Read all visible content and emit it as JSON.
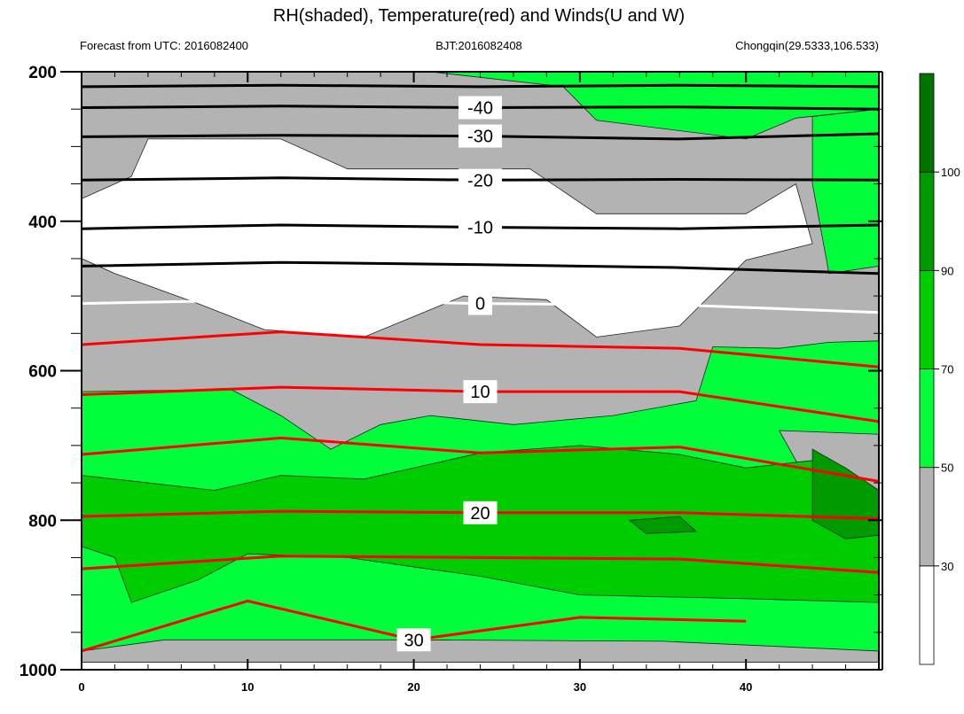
{
  "chart_data": {
    "type": "heatmap",
    "title": "RH(shaded), Temperature(red) and Winds(U and W)",
    "subtitle_left": "Forecast from UTC: 2016082400",
    "subtitle_center": "BJT:2016082408",
    "subtitle_right": "Chongqin(29.5333,106.533)",
    "xlim": [
      0,
      48
    ],
    "ylim": [
      1000,
      200
    ],
    "x_ticks": [
      0,
      10,
      20,
      30,
      40
    ],
    "y_ticks": [
      200,
      400,
      600,
      800,
      1000
    ],
    "x_tick_labels": [
      "0",
      "10",
      "20",
      "30",
      "40"
    ],
    "y_tick_labels": [
      "200",
      "400",
      "600",
      "800",
      "1000"
    ],
    "legend": {
      "position": "right",
      "levels": [
        "30",
        "50",
        "70",
        "90",
        "100"
      ],
      "colors": [
        "#ffffff",
        "#b3b3b3",
        "#00ff3a",
        "#00cd00",
        "#009b00",
        "#007300"
      ]
    },
    "rh_regions": [
      {
        "class": "gray",
        "color": "#b3b3b3",
        "points": [
          [
            0,
            200
          ],
          [
            48,
            200
          ],
          [
            48,
            990
          ],
          [
            0,
            990
          ]
        ]
      },
      {
        "class": "white",
        "color": "#ffffff",
        "points": [
          [
            0,
            990
          ],
          [
            48,
            990
          ],
          [
            48,
            1000
          ],
          [
            0,
            1000
          ]
        ]
      },
      {
        "class": "white",
        "color": "#ffffff",
        "points": [
          [
            4,
            290
          ],
          [
            12,
            290
          ],
          [
            16,
            330
          ],
          [
            27,
            330
          ],
          [
            31,
            390
          ],
          [
            40,
            390
          ],
          [
            43,
            350
          ],
          [
            44,
            430
          ],
          [
            40,
            452
          ],
          [
            36,
            540
          ],
          [
            31,
            555
          ],
          [
            28,
            505
          ],
          [
            23,
            500
          ],
          [
            17,
            555
          ],
          [
            11,
            545
          ],
          [
            7,
            510
          ],
          [
            2,
            470
          ],
          [
            0,
            450
          ],
          [
            0,
            370
          ],
          [
            3,
            340
          ]
        ]
      },
      {
        "class": "green",
        "color": "#00ff3a",
        "points": [
          [
            21,
            200
          ],
          [
            29,
            220
          ],
          [
            31,
            265
          ],
          [
            40,
            290
          ],
          [
            43,
            262
          ],
          [
            48,
            250
          ],
          [
            48,
            200
          ]
        ]
      },
      {
        "class": "green",
        "color": "#00ff3a",
        "points": [
          [
            44,
            260
          ],
          [
            48,
            250
          ],
          [
            48,
            460
          ],
          [
            45,
            470
          ],
          [
            44,
            350
          ]
        ]
      },
      {
        "class": "green",
        "color": "#00ff3a",
        "points": [
          [
            0,
            628
          ],
          [
            9,
            625
          ],
          [
            12,
            660
          ],
          [
            15,
            705
          ],
          [
            18,
            672
          ],
          [
            21,
            660
          ],
          [
            26,
            672
          ],
          [
            32,
            660
          ],
          [
            37,
            640
          ],
          [
            38,
            568
          ],
          [
            42,
            570
          ],
          [
            45,
            562
          ],
          [
            48,
            560
          ],
          [
            48,
            975
          ],
          [
            35,
            962
          ],
          [
            20,
            960
          ],
          [
            5,
            960
          ],
          [
            0,
            975
          ]
        ]
      },
      {
        "class": "gray",
        "color": "#b3b3b3",
        "points": [
          [
            42,
            680
          ],
          [
            48,
            685
          ],
          [
            48,
            760
          ],
          [
            44,
            760
          ]
        ]
      },
      {
        "class": "light-green",
        "color": "#00cd00",
        "points": [
          [
            0,
            740
          ],
          [
            8,
            760
          ],
          [
            12,
            740
          ],
          [
            17,
            745
          ],
          [
            24,
            710
          ],
          [
            30,
            700
          ],
          [
            36,
            712
          ],
          [
            40,
            730
          ],
          [
            44,
            720
          ],
          [
            48,
            760
          ],
          [
            48,
            910
          ],
          [
            40,
            905
          ],
          [
            30,
            900
          ],
          [
            24,
            875
          ],
          [
            16,
            850
          ],
          [
            10,
            845
          ],
          [
            7,
            880
          ],
          [
            3,
            910
          ],
          [
            2,
            850
          ],
          [
            0,
            835
          ]
        ]
      },
      {
        "class": "dark-green",
        "color": "#009b00",
        "points": [
          [
            44,
            705
          ],
          [
            46,
            730
          ],
          [
            48,
            760
          ],
          [
            48,
            820
          ],
          [
            46,
            825
          ],
          [
            44,
            800
          ]
        ]
      },
      {
        "class": "dark-green",
        "color": "#009b00",
        "points": [
          [
            33,
            800
          ],
          [
            36,
            795
          ],
          [
            37,
            815
          ],
          [
            34,
            818
          ]
        ]
      }
    ],
    "series": [
      {
        "name": "-40",
        "color": "#000000",
        "points": [
          [
            0,
            248
          ],
          [
            12,
            246
          ],
          [
            24,
            248
          ],
          [
            36,
            247
          ],
          [
            48,
            250
          ]
        ]
      },
      {
        "name": "-30",
        "color": "#000000",
        "points": [
          [
            0,
            287
          ],
          [
            12,
            285
          ],
          [
            24,
            286
          ],
          [
            36,
            290
          ],
          [
            48,
            283
          ]
        ]
      },
      {
        "name": "-20",
        "color": "#000000",
        "points": [
          [
            0,
            345
          ],
          [
            12,
            342
          ],
          [
            24,
            345
          ],
          [
            36,
            344
          ],
          [
            48,
            345
          ]
        ]
      },
      {
        "name": "-10",
        "color": "#000000",
        "points": [
          [
            0,
            410
          ],
          [
            12,
            405
          ],
          [
            24,
            408
          ],
          [
            36,
            410
          ],
          [
            48,
            405
          ]
        ]
      },
      {
        "name": "0",
        "color": "#ffffff",
        "points": [
          [
            0,
            510
          ],
          [
            12,
            505
          ],
          [
            24,
            510
          ],
          [
            36,
            512
          ],
          [
            48,
            522
          ]
        ]
      },
      {
        "name": "10",
        "color": "#ff0000",
        "points": [
          [
            0,
            632
          ],
          [
            12,
            622
          ],
          [
            24,
            628
          ],
          [
            36,
            628
          ],
          [
            48,
            668
          ]
        ]
      },
      {
        "name": "20",
        "color": "#ff0000",
        "points": [
          [
            0,
            795
          ],
          [
            12,
            788
          ],
          [
            24,
            790
          ],
          [
            36,
            790
          ],
          [
            48,
            798
          ]
        ]
      },
      {
        "name": "30",
        "color": "#ff0000",
        "points": [
          [
            0,
            975
          ],
          [
            10,
            908
          ],
          [
            20,
            960
          ],
          [
            30,
            930
          ],
          [
            40,
            935
          ]
        ]
      },
      {
        "name": "",
        "color": "#000000",
        "points": [
          [
            0,
            220
          ],
          [
            12,
            218
          ],
          [
            24,
            220
          ],
          [
            36,
            218
          ],
          [
            48,
            220
          ]
        ]
      },
      {
        "name": "",
        "color": "#000000",
        "points": [
          [
            0,
            460
          ],
          [
            12,
            455
          ],
          [
            24,
            458
          ],
          [
            36,
            462
          ],
          [
            48,
            470
          ]
        ]
      },
      {
        "name": "",
        "color": "#ff0000",
        "points": [
          [
            0,
            565
          ],
          [
            12,
            548
          ],
          [
            24,
            565
          ],
          [
            36,
            570
          ],
          [
            48,
            595
          ]
        ]
      },
      {
        "name": "",
        "color": "#ff0000",
        "points": [
          [
            0,
            712
          ],
          [
            12,
            690
          ],
          [
            24,
            710
          ],
          [
            36,
            702
          ],
          [
            48,
            748
          ]
        ]
      },
      {
        "name": "",
        "color": "#ff0000",
        "points": [
          [
            0,
            865
          ],
          [
            12,
            848
          ],
          [
            24,
            850
          ],
          [
            36,
            852
          ],
          [
            48,
            870
          ]
        ]
      }
    ]
  }
}
